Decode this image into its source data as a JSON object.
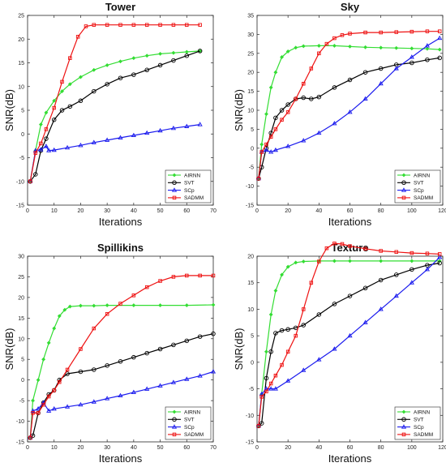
{
  "chart_data": [
    {
      "type": "line",
      "title": "Tower",
      "xlabel": "Iterations",
      "ylabel": "SNR(dB)",
      "xlim": [
        0,
        70
      ],
      "ylim": [
        -15,
        25
      ],
      "xticks": [
        0,
        10,
        20,
        30,
        40,
        50,
        60,
        70
      ],
      "yticks": [
        -15,
        -10,
        -5,
        0,
        5,
        10,
        15,
        20,
        25
      ],
      "legend_position": "bottom-right",
      "series": [
        {
          "name": "AIRNN",
          "x": [
            1,
            3,
            5,
            7,
            10,
            13,
            16,
            20,
            25,
            30,
            35,
            40,
            45,
            50,
            55,
            60,
            65
          ],
          "y": [
            -10,
            -3.5,
            2,
            4.5,
            7,
            9,
            10.5,
            12,
            13.5,
            14.5,
            15.3,
            16,
            16.5,
            16.9,
            17.1,
            17.3,
            17.5
          ]
        },
        {
          "name": "SVT",
          "x": [
            1,
            3,
            5,
            7,
            10,
            13,
            16,
            20,
            25,
            30,
            35,
            40,
            45,
            50,
            55,
            60,
            65
          ],
          "y": [
            -10,
            -8.5,
            -3.5,
            -1,
            3,
            5,
            5.8,
            7,
            9,
            10.5,
            11.8,
            12.5,
            13.5,
            14.5,
            15.5,
            16.5,
            17.5
          ]
        },
        {
          "name": "SCp",
          "x": [
            1,
            3,
            5,
            7,
            8,
            10,
            15,
            20,
            25,
            30,
            35,
            40,
            45,
            50,
            55,
            60,
            65
          ],
          "y": [
            -10,
            -3.5,
            -3.3,
            -2.6,
            -3.5,
            -3.4,
            -2.9,
            -2.4,
            -1.8,
            -1.3,
            -0.8,
            -0.3,
            0.2,
            0.7,
            1.2,
            1.6,
            2
          ]
        },
        {
          "name": "SADMM",
          "x": [
            1,
            3,
            5,
            7,
            10,
            13,
            16,
            19,
            22,
            25,
            30,
            35,
            40,
            45,
            50,
            55,
            60,
            65
          ],
          "y": [
            -10,
            -4,
            -2,
            1,
            5.5,
            11,
            16,
            20.5,
            22.7,
            23,
            23,
            23,
            23,
            23,
            23,
            23,
            23,
            23
          ]
        }
      ]
    },
    {
      "type": "line",
      "title": "Sky",
      "xlabel": "Iterations",
      "ylabel": "SNR(dB)",
      "xlim": [
        0,
        120
      ],
      "ylim": [
        -15,
        35
      ],
      "xticks": [
        0,
        20,
        40,
        60,
        80,
        100,
        120
      ],
      "yticks": [
        -15,
        -10,
        -5,
        0,
        5,
        10,
        15,
        20,
        25,
        30,
        35
      ],
      "legend_position": "bottom-right",
      "series": [
        {
          "name": "AIRNN",
          "x": [
            1,
            3,
            6,
            9,
            12,
            16,
            20,
            25,
            30,
            40,
            50,
            60,
            70,
            80,
            90,
            100,
            110,
            118
          ],
          "y": [
            -8,
            1,
            9,
            16,
            20,
            24,
            25.5,
            26.5,
            26.9,
            27,
            27,
            26.8,
            26.6,
            26.5,
            26.4,
            26.3,
            26.2,
            26
          ]
        },
        {
          "name": "SVT",
          "x": [
            1,
            3,
            6,
            9,
            12,
            16,
            20,
            25,
            30,
            35,
            40,
            50,
            60,
            70,
            80,
            90,
            100,
            110,
            118
          ],
          "y": [
            -8,
            -5,
            0,
            4,
            8,
            10,
            11.5,
            13,
            13.3,
            13,
            13.5,
            16,
            18,
            20,
            21,
            22,
            22.5,
            23.3,
            23.8
          ]
        },
        {
          "name": "SCp",
          "x": [
            1,
            3,
            6,
            9,
            12,
            20,
            30,
            40,
            50,
            60,
            70,
            80,
            90,
            100,
            110,
            118
          ],
          "y": [
            -8,
            -1,
            -0.5,
            -1,
            -0.5,
            0.5,
            2,
            4,
            6.5,
            9.5,
            13,
            17,
            21,
            24,
            27,
            29
          ]
        },
        {
          "name": "SADMM",
          "x": [
            1,
            3,
            6,
            9,
            12,
            16,
            20,
            25,
            30,
            35,
            40,
            45,
            50,
            55,
            60,
            70,
            80,
            90,
            100,
            110,
            118
          ],
          "y": [
            -8,
            -1,
            1,
            3,
            5,
            7.5,
            9.5,
            13,
            17,
            21,
            25,
            27.5,
            29,
            29.8,
            30.2,
            30.5,
            30.5,
            30.6,
            30.7,
            30.8,
            30.8
          ]
        }
      ]
    },
    {
      "type": "line",
      "title": "Spillikins",
      "xlabel": "Iterations",
      "ylabel": "SNR(dB)",
      "xlim": [
        0,
        70
      ],
      "ylim": [
        -15,
        30
      ],
      "xticks": [
        0,
        10,
        20,
        30,
        40,
        50,
        60,
        70
      ],
      "yticks": [
        -15,
        -10,
        -5,
        0,
        5,
        10,
        15,
        20,
        25,
        30
      ],
      "legend_position": "bottom-right",
      "series": [
        {
          "name": "AIRNN",
          "x": [
            1,
            2,
            4,
            6,
            8,
            10,
            12,
            14,
            16,
            20,
            25,
            30,
            40,
            50,
            60,
            70
          ],
          "y": [
            -14,
            -5,
            0,
            5,
            9,
            12.5,
            15.5,
            17,
            17.8,
            18,
            18,
            18.1,
            18.1,
            18.1,
            18.1,
            18.2
          ]
        },
        {
          "name": "SVT",
          "x": [
            1,
            2,
            4,
            6,
            8,
            10,
            12,
            15,
            20,
            25,
            30,
            35,
            40,
            45,
            50,
            55,
            60,
            65,
            70
          ],
          "y": [
            -14,
            -13.5,
            -8,
            -5.5,
            -3.5,
            -2.5,
            0,
            1.5,
            2,
            2.5,
            3.5,
            4.5,
            5.5,
            6.5,
            7.5,
            8.5,
            9.5,
            10.5,
            11.2
          ]
        },
        {
          "name": "SCp",
          "x": [
            1,
            2,
            4,
            6,
            8,
            10,
            15,
            20,
            25,
            30,
            35,
            40,
            45,
            50,
            55,
            60,
            65,
            70
          ],
          "y": [
            -14,
            -7.5,
            -7,
            -5.5,
            -7.5,
            -7,
            -6.5,
            -6,
            -5.3,
            -4.5,
            -3.8,
            -3,
            -2.2,
            -1.4,
            -0.6,
            0.2,
            1,
            2
          ]
        },
        {
          "name": "SADMM",
          "x": [
            1,
            2,
            4,
            6,
            8,
            10,
            12,
            15,
            20,
            25,
            30,
            35,
            40,
            45,
            50,
            55,
            60,
            65,
            70
          ],
          "y": [
            -14,
            -8,
            -8,
            -6,
            -4,
            -2.5,
            -0.5,
            2.5,
            7.5,
            12.5,
            16,
            18.5,
            20.5,
            22.5,
            24,
            25,
            25.3,
            25.3,
            25.3
          ]
        }
      ]
    },
    {
      "type": "line",
      "title": "Texture",
      "xlabel": "Iterations",
      "ylabel": "SNR(dB)",
      "xlim": [
        0,
        120
      ],
      "ylim": [
        -15,
        20
      ],
      "xticks": [
        0,
        20,
        40,
        60,
        80,
        100,
        120
      ],
      "yticks": [
        -15,
        -10,
        -5,
        0,
        5,
        10,
        15,
        20
      ],
      "legend_position": "bottom-right",
      "series": [
        {
          "name": "AIRNN",
          "x": [
            1,
            3,
            6,
            9,
            12,
            16,
            20,
            25,
            30,
            40,
            50,
            60,
            80,
            100,
            118
          ],
          "y": [
            -12,
            -6,
            2,
            9,
            13.5,
            16.5,
            18,
            18.8,
            19,
            19.1,
            19.1,
            19.1,
            19.1,
            19.1,
            19.1
          ]
        },
        {
          "name": "SVT",
          "x": [
            1,
            3,
            6,
            9,
            12,
            16,
            20,
            25,
            30,
            40,
            50,
            60,
            70,
            80,
            90,
            100,
            110,
            118
          ],
          "y": [
            -12,
            -11.5,
            -3,
            2,
            5.5,
            6,
            6.2,
            6.5,
            7,
            9,
            11,
            12.5,
            14,
            15.5,
            16.5,
            17.5,
            18.3,
            18.7
          ]
        },
        {
          "name": "SCp",
          "x": [
            1,
            3,
            6,
            9,
            12,
            20,
            30,
            40,
            50,
            60,
            70,
            80,
            90,
            100,
            110,
            118
          ],
          "y": [
            -12,
            -6,
            -5,
            -5,
            -5,
            -3.5,
            -1.5,
            0.5,
            2.5,
            5,
            7.5,
            10,
            12.5,
            15,
            17.5,
            19.8
          ]
        },
        {
          "name": "SADMM",
          "x": [
            1,
            3,
            6,
            9,
            12,
            16,
            20,
            25,
            30,
            35,
            40,
            45,
            50,
            55,
            60,
            70,
            80,
            90,
            100,
            110,
            118
          ],
          "y": [
            -12,
            -6.5,
            -5.5,
            -4,
            -2.5,
            -0.5,
            2,
            5,
            10,
            15,
            19,
            21.5,
            22.4,
            22.3,
            21.9,
            21.4,
            21,
            20.8,
            20.6,
            20.5,
            20.4
          ]
        }
      ]
    }
  ],
  "colors": {
    "AIRNN": "#33dd33",
    "SVT": "#000000",
    "SCp": "#1a1aee",
    "SADMM": "#ee1111"
  }
}
